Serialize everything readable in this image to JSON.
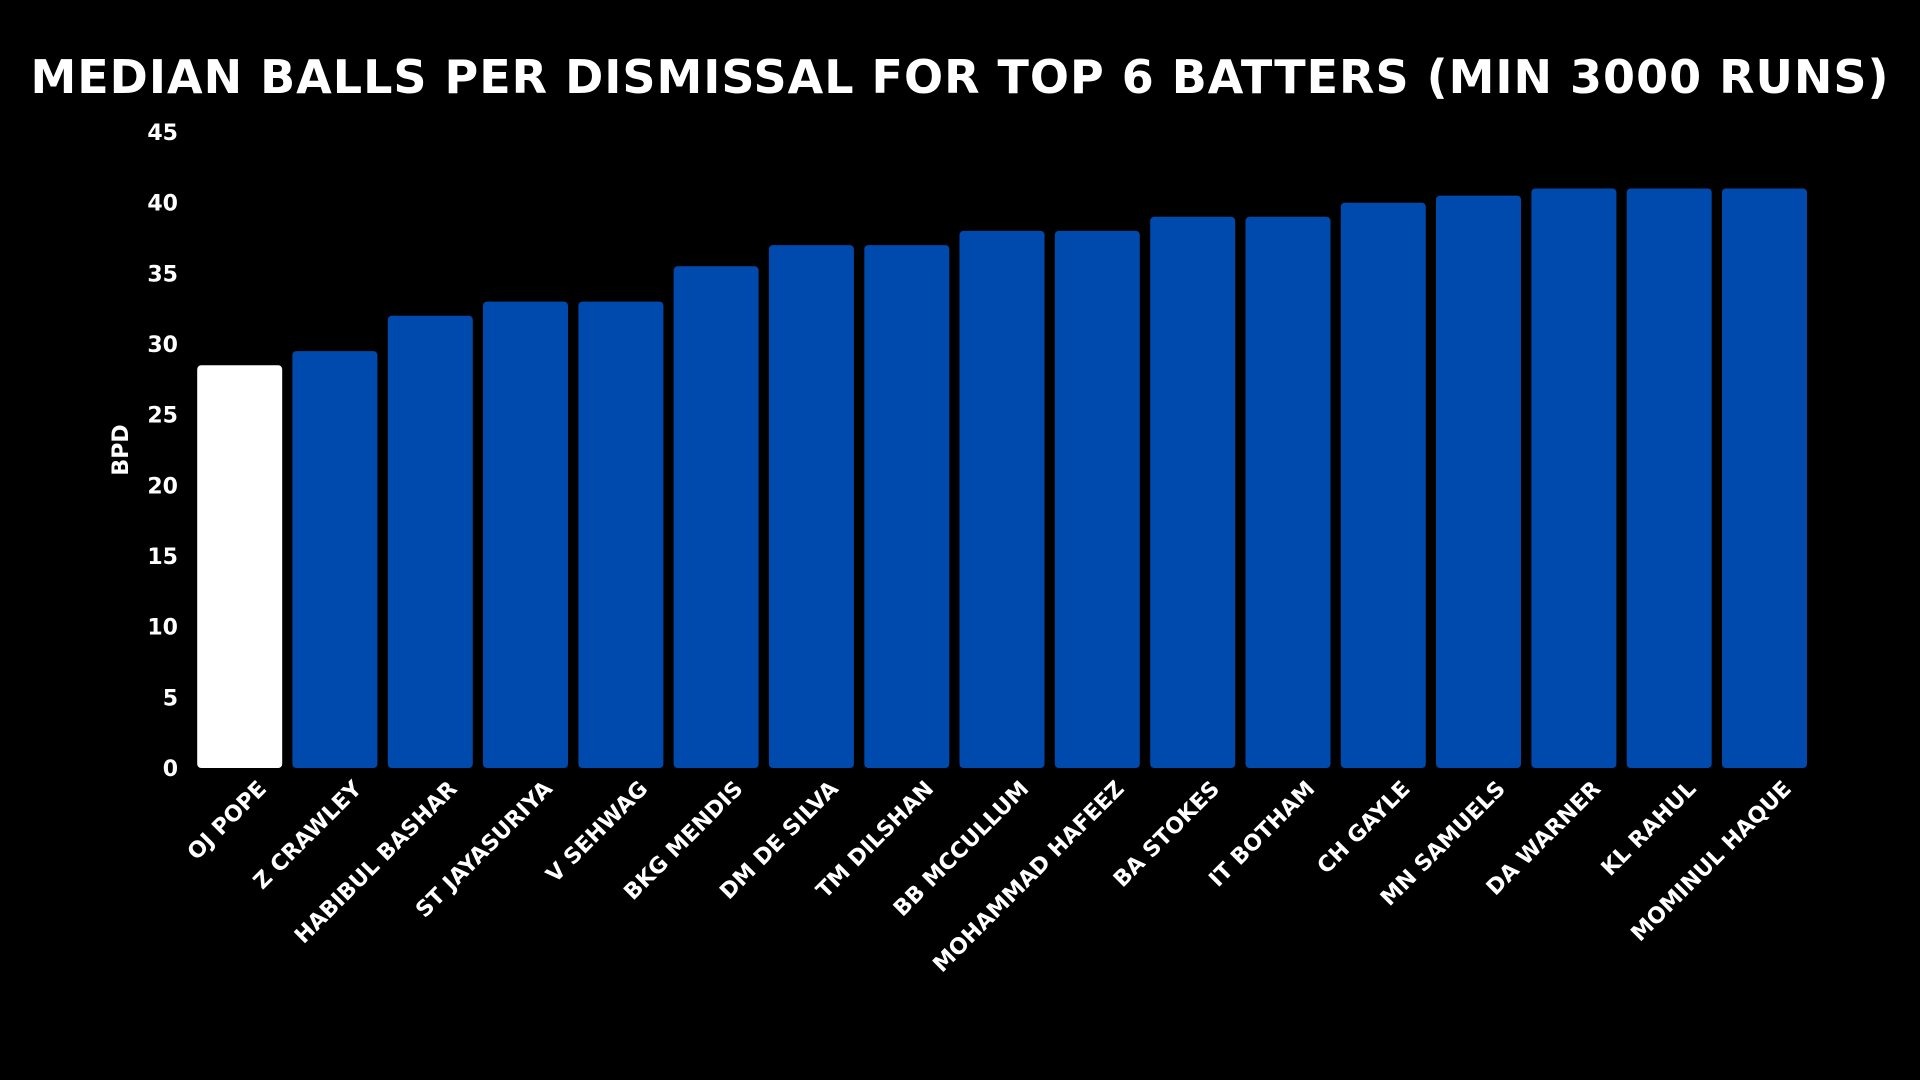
{
  "chart_data": {
    "type": "bar",
    "title": "MEDIAN BALLS PER DISMISSAL FOR TOP 6 BATTERS (MIN 3000 RUNS)",
    "xlabel": "",
    "ylabel": "BPD",
    "ylim": [
      0,
      45
    ],
    "yticks": [
      0,
      5,
      10,
      15,
      20,
      25,
      30,
      35,
      40,
      45
    ],
    "ytick_labels": [
      "0",
      "5",
      "10",
      "15",
      "20",
      "25",
      "30",
      "35",
      "40",
      "45"
    ],
    "grid": false,
    "legend": "none",
    "categories": [
      "OJ POPE",
      "Z CRAWLEY",
      "HABIBUL BASHAR",
      "ST JAYASURIYA",
      "V SEHWAG",
      "BKG MENDIS",
      "DM DE SILVA",
      "TM DILSHAN",
      "BB MCCULLUM",
      "MOHAMMAD HAFEEZ",
      "BA STOKES",
      "IT BOTHAM",
      "CH GAYLE",
      "MN SAMUELS",
      "DA WARNER",
      "KL RAHUL",
      "MOMINUL HAQUE"
    ],
    "values": [
      28.5,
      29.5,
      32,
      33,
      33,
      35.5,
      37,
      37,
      38,
      38,
      39,
      39,
      40,
      40.5,
      41,
      41,
      41
    ],
    "highlight_category": "OJ POPE",
    "colors": {
      "background": "#000000",
      "bar": "#004AAD",
      "highlight_bar": "#FFFFFF",
      "text": "#FFFFFF"
    }
  }
}
